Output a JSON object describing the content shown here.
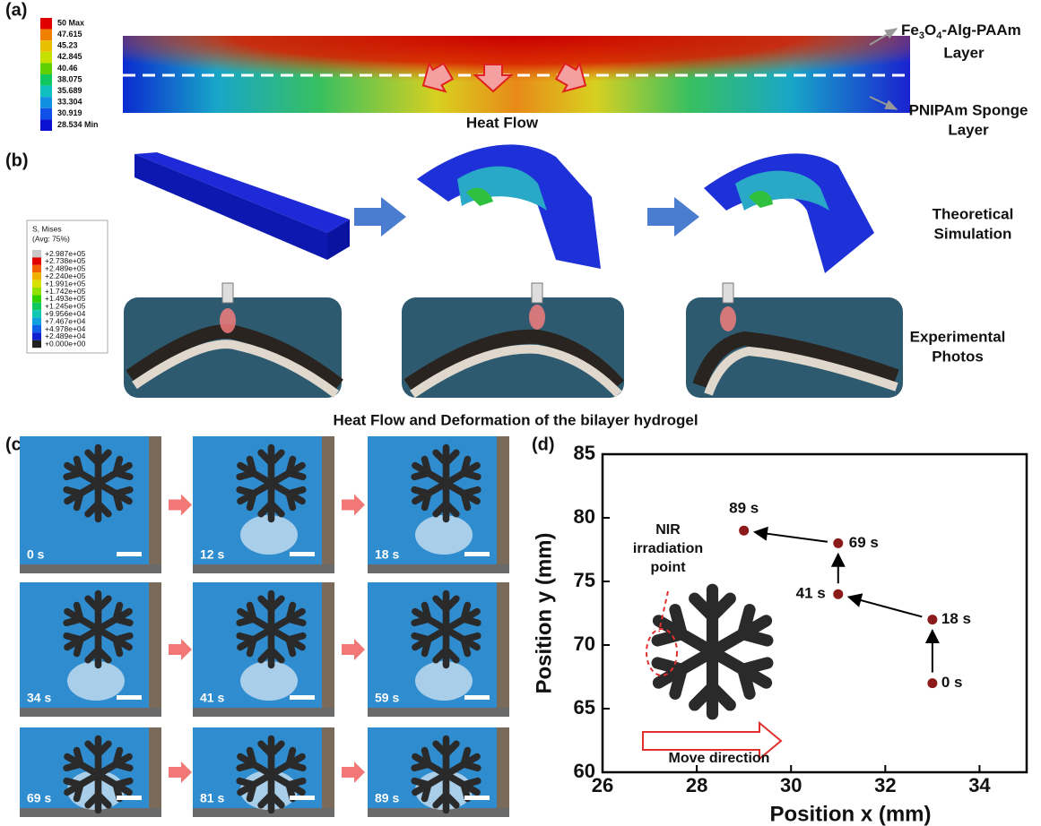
{
  "panel_a": {
    "label": "(a)",
    "colorbar": [
      "50 Max",
      "47.615",
      "45.23",
      "42.845",
      "40.46",
      "38.075",
      "35.689",
      "33.304",
      "30.919",
      "28.534 Min"
    ],
    "caption": "Heat Flow",
    "top_layer": {
      "parts": [
        "Fe",
        "3",
        "O",
        "4",
        "-Alg-PAAm"
      ],
      "line2": "Layer"
    },
    "bottom_layer": {
      "line1": "PNIPAm Sponge",
      "line2": "Layer"
    }
  },
  "panel_b": {
    "label": "(b)",
    "legend_title": "S, Mises",
    "legend_subtitle": "(Avg: 75%)",
    "legend": [
      "+2.987e+05",
      "+2.738e+05",
      "+2.489e+05",
      "+2.240e+05",
      "+1.991e+05",
      "+1.742e+05",
      "+1.493e+05",
      "+1.245e+05",
      "+9.956e+04",
      "+7.467e+04",
      "+4.978e+04",
      "+2.489e+04",
      "+0.000e+00"
    ],
    "row1": [
      "Theoretical",
      "Simulation"
    ],
    "row2": [
      "Experimental",
      "Photos"
    ],
    "caption": "Heat Flow and Deformation of the bilayer hydrogel"
  },
  "panel_c": {
    "label": "(c)",
    "times": [
      "0 s",
      "12 s",
      "18 s",
      "34 s",
      "41 s",
      "59 s",
      "69 s",
      "81 s",
      "89 s"
    ]
  },
  "chart_data": {
    "type": "scatter",
    "panel_label": "(d)",
    "x": [
      33,
      33,
      31,
      31,
      29
    ],
    "y": [
      67,
      72,
      74,
      78,
      79
    ],
    "point_labels": [
      "0 s",
      "18 s",
      "41 s",
      "69 s",
      "89 s"
    ],
    "color": "#8b1a1a",
    "xlim": [
      26,
      35
    ],
    "ylim": [
      60,
      85
    ],
    "xticks": [
      26,
      28,
      30,
      32,
      34
    ],
    "yticks": [
      60,
      65,
      70,
      75,
      80,
      85
    ],
    "xlabel": "Position x (mm)",
    "ylabel": "Position y (mm)",
    "annotations": {
      "nir": [
        "NIR",
        "irradiation",
        "point"
      ],
      "move": "Move direction"
    }
  }
}
